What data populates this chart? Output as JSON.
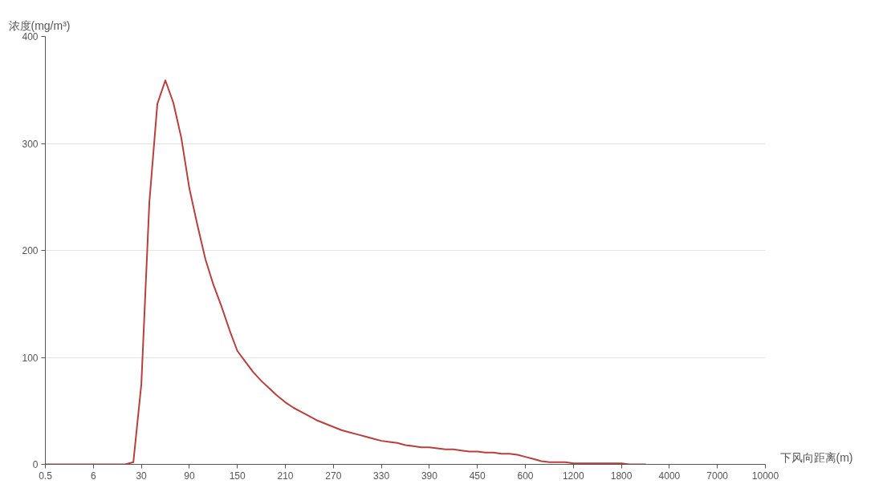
{
  "chart_data": {
    "type": "line",
    "xlabel": "下风向距离(m)",
    "ylabel": "浓度(mg/m³)",
    "categories": [
      "0.5",
      null,
      null,
      null,
      null,
      null,
      "6",
      null,
      null,
      null,
      null,
      null,
      "30",
      null,
      null,
      null,
      null,
      null,
      "90",
      null,
      null,
      null,
      null,
      null,
      "150",
      null,
      null,
      null,
      null,
      null,
      "210",
      null,
      null,
      null,
      null,
      null,
      "270",
      null,
      null,
      null,
      null,
      null,
      "330",
      null,
      null,
      null,
      null,
      null,
      "390",
      null,
      null,
      null,
      null,
      null,
      "450",
      null,
      null,
      null,
      null,
      null,
      "600",
      null,
      null,
      null,
      null,
      null,
      "1200",
      null,
      null,
      null,
      null,
      null,
      "1800",
      null,
      null,
      null,
      null,
      null,
      "4000",
      null,
      null,
      null,
      null,
      null,
      "7000",
      null,
      null,
      null,
      null,
      null,
      "10000"
    ],
    "series": [
      {
        "color": "#b8403c",
        "values": [
          0,
          0,
          0,
          0,
          0,
          0,
          0,
          0,
          0,
          0,
          0,
          2,
          75,
          245,
          337,
          359,
          338,
          305,
          258,
          224,
          192,
          168,
          148,
          126,
          106,
          96,
          86,
          78,
          71,
          64,
          58,
          53,
          49,
          45,
          41,
          38,
          35,
          32,
          30,
          28,
          26,
          24,
          22,
          21,
          20,
          18,
          17,
          16,
          16,
          15,
          14,
          14,
          13,
          12,
          12,
          11,
          11,
          10,
          10,
          9,
          7,
          5,
          3,
          2,
          2,
          2,
          1,
          1,
          1,
          1,
          1,
          1,
          1,
          0,
          0,
          0,
          null,
          null,
          null,
          null,
          null,
          null,
          null,
          null,
          null,
          null,
          null,
          null,
          null,
          null,
          null
        ]
      }
    ],
    "ylim": [
      0,
      400
    ],
    "yticks": [
      0,
      100,
      200,
      300,
      400
    ],
    "grid": "y",
    "line_style": "solid"
  }
}
